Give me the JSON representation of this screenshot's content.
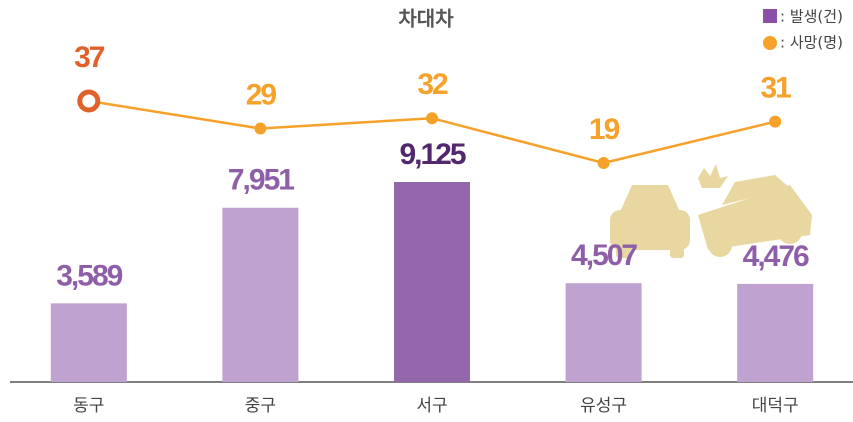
{
  "chart_data": {
    "type": "bar_line",
    "title": "차대차",
    "categories": [
      "동구",
      "중구",
      "서구",
      "유성구",
      "대덕구"
    ],
    "series": [
      {
        "name": ": 발생(건)",
        "type": "bar",
        "color": "#8a4fa6",
        "colors": [
          "#bfa2cf",
          "#bfa2cf",
          "#9467ad",
          "#bfa2cf",
          "#bfa2cf"
        ],
        "label_colors": [
          "#8e5ea8",
          "#8e5ea8",
          "#52276e",
          "#8e5ea8",
          "#8e5ea8"
        ],
        "values": [
          3589,
          7951,
          9125,
          4507,
          4476
        ],
        "value_labels": [
          "3,589",
          "7,951",
          "9,125",
          "4,507",
          "4,476"
        ]
      },
      {
        "name": ": 사망(명)",
        "type": "line",
        "color": "#f5a12a",
        "label_colors": [
          "#e0622a",
          "#f5a12a",
          "#f5a12a",
          "#f5a12a",
          "#f5a12a"
        ],
        "values": [
          37,
          29,
          32,
          19,
          31
        ]
      }
    ]
  }
}
